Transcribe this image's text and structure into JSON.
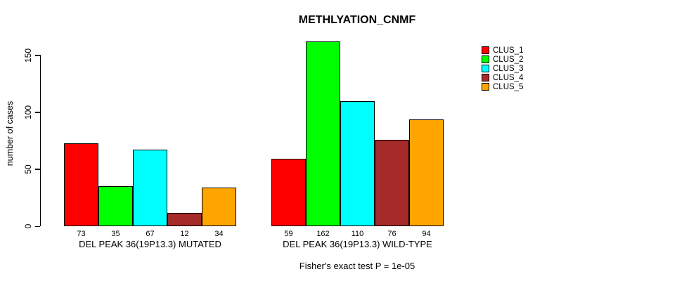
{
  "title": "METHLYATION_CNMF",
  "ylabel": "number of cases",
  "footer": "Fisher's exact test P = 1e-05",
  "legend": {
    "entries": [
      {
        "label": "CLUS_1",
        "color": "#FF0000"
      },
      {
        "label": "CLUS_2",
        "color": "#00FF00"
      },
      {
        "label": "CLUS_3",
        "color": "#00FFFF"
      },
      {
        "label": "CLUS_4",
        "color": "#A52A2A"
      },
      {
        "label": "CLUS_5",
        "color": "#FFA500"
      }
    ]
  },
  "chart_data": {
    "type": "bar",
    "title": "METHLYATION_CNMF",
    "xlabel": "",
    "ylabel": "number of cases",
    "ylim": [
      0,
      150
    ],
    "yticks": [
      0,
      50,
      100,
      150
    ],
    "grid": false,
    "legend_position": "top-right",
    "categories": [
      "DEL PEAK 36(19P13.3) MUTATED",
      "DEL PEAK 36(19P13.3) WILD-TYPE"
    ],
    "series": [
      {
        "name": "CLUS_1",
        "color": "#FF0000",
        "values": [
          73,
          59
        ]
      },
      {
        "name": "CLUS_2",
        "color": "#00FF00",
        "values": [
          35,
          162
        ]
      },
      {
        "name": "CLUS_3",
        "color": "#00FFFF",
        "values": [
          67,
          110
        ]
      },
      {
        "name": "CLUS_4",
        "color": "#A52A2A",
        "values": [
          12,
          76
        ]
      },
      {
        "name": "CLUS_5",
        "color": "#FFA500",
        "values": [
          34,
          94
        ]
      }
    ],
    "bar_value_labels": [
      [
        73,
        35,
        67,
        12,
        34
      ],
      [
        59,
        162,
        110,
        76,
        94
      ]
    ],
    "annotation": "Fisher's exact test P = 1e-05"
  }
}
